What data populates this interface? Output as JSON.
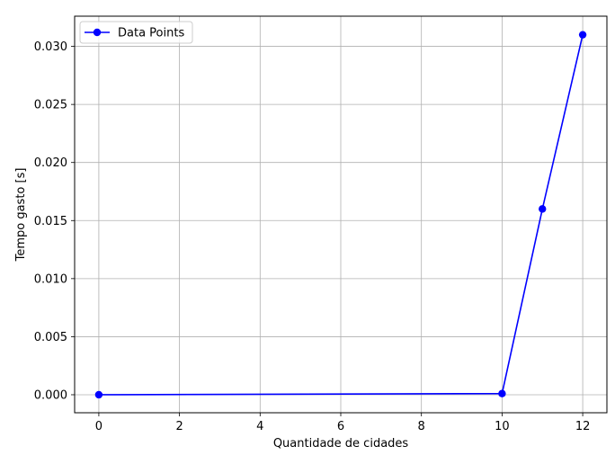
{
  "chart_data": {
    "type": "line",
    "xlabel": "Quantidade de cidades",
    "ylabel": "Tempo gasto [s]",
    "xlim": [
      -0.6,
      12.6
    ],
    "ylim": [
      -0.00155,
      0.0326
    ],
    "xticks": [
      0,
      2,
      4,
      6,
      8,
      10,
      12
    ],
    "xtick_labels": [
      "0",
      "2",
      "4",
      "6",
      "8",
      "10",
      "12"
    ],
    "yticks": [
      0.0,
      0.005,
      0.01,
      0.015,
      0.02,
      0.025,
      0.03
    ],
    "ytick_labels": [
      "0.000",
      "0.005",
      "0.010",
      "0.015",
      "0.020",
      "0.025",
      "0.030"
    ],
    "grid": true,
    "legend_position": "top-left",
    "series": [
      {
        "name": "Data Points",
        "color": "#0000ff",
        "marker": "circle",
        "x": [
          0,
          10,
          11,
          12
        ],
        "y": [
          0.0,
          0.0001,
          0.016,
          0.031
        ]
      }
    ]
  }
}
